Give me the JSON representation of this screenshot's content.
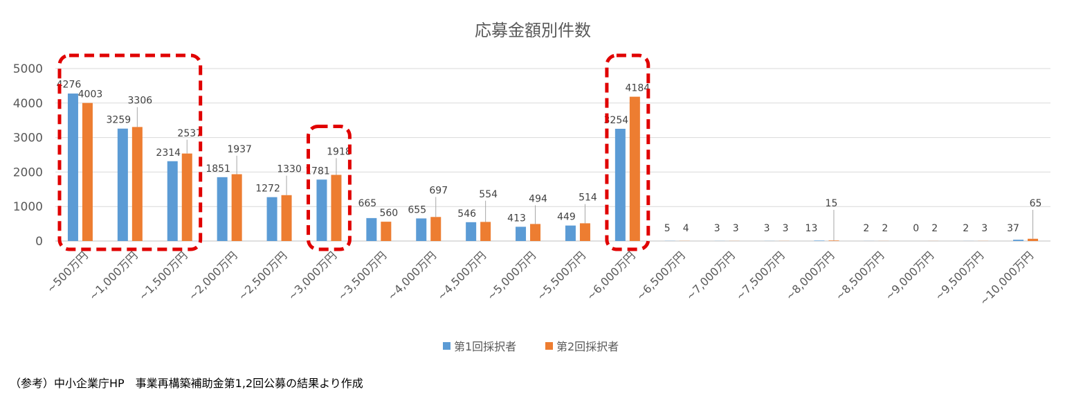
{
  "chart_data": {
    "type": "bar",
    "title": "応募金額別件数",
    "categories": [
      "~500万円",
      "~1,000万円",
      "~1,500万円",
      "~2,000万円",
      "~2,500万円",
      "~3,000万円",
      "~3,500万円",
      "~4,000万円",
      "~4,500万円",
      "~5,000万円",
      "~5,500万円",
      "~6,000万円",
      "~6,500万円",
      "~7,000万円",
      "~7,500万円",
      "~8,000万円",
      "~8,500万円",
      "~9,000万円",
      "~9,500万円",
      "~10,000万円"
    ],
    "series": [
      {
        "name": "第1回採択者",
        "color": "#5B9BD5",
        "values": [
          4276,
          3259,
          2314,
          1851,
          1272,
          1781,
          665,
          655,
          546,
          413,
          449,
          3254,
          5,
          3,
          3,
          13,
          2,
          0,
          2,
          37
        ]
      },
      {
        "name": "第2回採択者",
        "color": "#ED7D31",
        "values": [
          4003,
          3306,
          2537,
          1937,
          1330,
          1918,
          560,
          697,
          554,
          494,
          514,
          4184,
          4,
          3,
          3,
          15,
          2,
          2,
          3,
          65
        ]
      }
    ],
    "yticks": [
      0,
      1000,
      2000,
      3000,
      4000,
      5000
    ],
    "ylim": [
      0,
      5000
    ],
    "xlabel": "",
    "ylabel": "",
    "grid": true,
    "legend": "bottom",
    "highlight_groups": [
      [
        0,
        2
      ],
      [
        5,
        5
      ],
      [
        11,
        11
      ]
    ],
    "highlight_color": "#E00000"
  },
  "footnote": "（参考）中小企業庁HP　事業再構築補助金第1,2回公募の結果より作成"
}
